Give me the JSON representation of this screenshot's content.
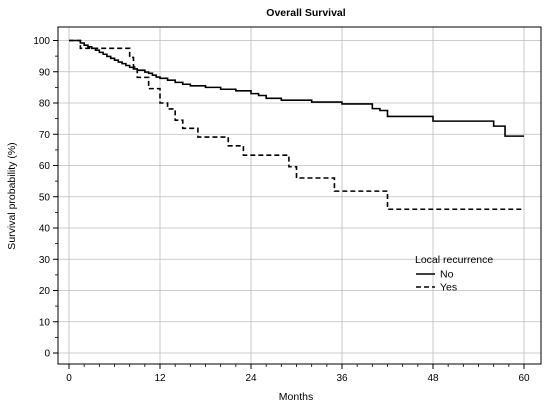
{
  "chart_data": {
    "type": "line",
    "title": "Overall Survival",
    "xlabel": "Months",
    "ylabel": "Survival probability (%)",
    "xlim": [
      0,
      60
    ],
    "ylim": [
      0,
      100
    ],
    "xticks": [
      0,
      12,
      24,
      36,
      48,
      60
    ],
    "yticks": [
      0,
      10,
      20,
      30,
      40,
      50,
      60,
      70,
      80,
      90,
      100
    ],
    "grid": true,
    "step": true,
    "legend": {
      "title": "Local recurrence",
      "position": "right-middle"
    },
    "series": [
      {
        "name": "No",
        "dash": "solid",
        "x": [
          0,
          1.5,
          2,
          2.5,
          3,
          3.5,
          4,
          4.5,
          5,
          5.5,
          6,
          6.5,
          7,
          7.5,
          8,
          8.5,
          9,
          10,
          10.5,
          11,
          11.5,
          12,
          13,
          14,
          15,
          16,
          18,
          20,
          22,
          24,
          25,
          26,
          28,
          32,
          36,
          40,
          41,
          42,
          48,
          56,
          57.5,
          60
        ],
        "y": [
          100,
          99.2,
          98.5,
          98,
          97.5,
          96.9,
          96.2,
          95.6,
          94.9,
          94.3,
          93.7,
          93.1,
          92.6,
          92,
          91.4,
          90.9,
          90.5,
          89.9,
          89.5,
          88.9,
          88.3,
          87.9,
          87.3,
          86.6,
          86.0,
          85.5,
          85.0,
          84.4,
          83.9,
          83.0,
          82.4,
          81.5,
          80.9,
          80.3,
          79.7,
          78.2,
          77.6,
          75.7,
          74.2,
          72.6,
          69.4,
          69.4
        ]
      },
      {
        "name": "Yes",
        "dash": "dashed",
        "x": [
          0,
          1.5,
          2,
          4,
          8,
          8.5,
          9,
          10.5,
          12,
          13,
          14,
          15,
          17,
          21,
          23,
          29,
          30,
          35,
          42,
          60
        ],
        "y": [
          100,
          97.5,
          97.5,
          97.5,
          94.6,
          91.5,
          88.2,
          84.6,
          80.0,
          78.1,
          74.5,
          71.9,
          69.1,
          66.3,
          63.3,
          59.6,
          56.0,
          51.8,
          46.0,
          46.0
        ]
      }
    ]
  }
}
